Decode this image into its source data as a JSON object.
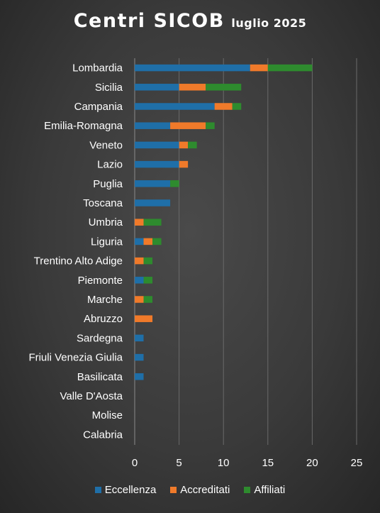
{
  "title": "Centri SICOB",
  "subtitle": "luglio 2025",
  "chart_data": {
    "type": "bar",
    "orientation": "horizontal",
    "stacked": true,
    "categories": [
      "Lombardia",
      "Sicilia",
      "Campania",
      "Emilia-Romagna",
      "Veneto",
      "Lazio",
      "Puglia",
      "Toscana",
      "Umbria",
      "Liguria",
      "Trentino Alto Adige",
      "Piemonte",
      "Marche",
      "Abruzzo",
      "Sardegna",
      "Friuli Venezia Giulia",
      "Basilicata",
      "Valle D'Aosta",
      "Molise",
      "Calabria"
    ],
    "series": [
      {
        "name": "Eccellenza",
        "color": "#1f6fa8",
        "values": [
          13,
          5,
          9,
          4,
          5,
          5,
          4,
          4,
          0,
          1,
          0,
          1,
          0,
          0,
          1,
          1,
          1,
          0,
          0,
          0
        ]
      },
      {
        "name": "Accreditati",
        "color": "#f07a2a",
        "values": [
          2,
          3,
          2,
          4,
          1,
          1,
          0,
          0,
          1,
          1,
          1,
          0,
          1,
          2,
          0,
          0,
          0,
          0,
          0,
          0
        ]
      },
      {
        "name": "Affiliati",
        "color": "#2e8b2e",
        "values": [
          5,
          4,
          1,
          1,
          1,
          0,
          1,
          0,
          2,
          1,
          1,
          1,
          1,
          0,
          0,
          0,
          0,
          0,
          0,
          0
        ]
      }
    ],
    "xlim": [
      0,
      25
    ],
    "xticks": [
      0,
      5,
      10,
      15,
      20,
      25
    ],
    "grid": true,
    "legend_position": "bottom"
  }
}
